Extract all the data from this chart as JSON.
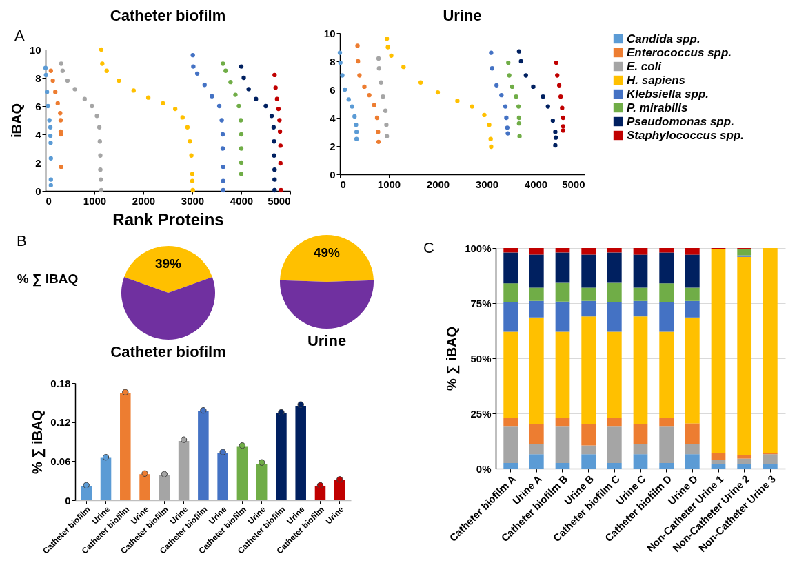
{
  "chart_data": [
    {
      "type": "scatter",
      "title": "Catheter biofilm",
      "xlabel": "Rank Proteins",
      "ylabel": "iBAQ",
      "annotations": [
        "A"
      ],
      "marker": "circle",
      "xlim": [
        0,
        5000
      ],
      "xticks": [
        0,
        1000,
        2000,
        3000,
        4000,
        5000
      ],
      "ylim": [
        0,
        10
      ],
      "yticks": [
        0,
        2,
        4,
        6,
        8,
        10
      ],
      "series": [
        {
          "color": "#5b9bd5",
          "x": [
            0,
            10,
            30,
            50,
            80,
            100,
            100,
            105,
            110,
            110,
            110
          ],
          "values": [
            8.7,
            8.2,
            7,
            6,
            5,
            4.5,
            3.9,
            3.4,
            2.3,
            0.8,
            0.4
          ]
        },
        {
          "color": "#ed7d31",
          "x": [
            110,
            150,
            200,
            250,
            300,
            310,
            310,
            315,
            320
          ],
          "values": [
            8.5,
            7.8,
            7,
            6.2,
            5.5,
            5,
            4.2,
            4,
            1.7
          ]
        },
        {
          "color": "#a5a5a5",
          "x": [
            320,
            350,
            450,
            600,
            800,
            950,
            1050,
            1100,
            1110,
            1120,
            1120,
            1130,
            1140
          ],
          "values": [
            9,
            8.5,
            7.8,
            7.2,
            6.5,
            6,
            5.3,
            4.5,
            3.5,
            2.5,
            1.5,
            0.8,
            0.05
          ]
        },
        {
          "color": "#ffc000",
          "x": [
            1140,
            1160,
            1250,
            1500,
            1800,
            2100,
            2400,
            2650,
            2800,
            2900,
            2950,
            2980,
            3000,
            3000,
            3010
          ],
          "values": [
            10,
            9,
            8.5,
            7.8,
            7.1,
            6.6,
            6.2,
            5.8,
            5.2,
            4.5,
            3.5,
            2.5,
            1.2,
            0.7,
            0.05
          ]
        },
        {
          "color": "#4472c4",
          "x": [
            3010,
            3020,
            3100,
            3250,
            3400,
            3550,
            3600,
            3620,
            3620,
            3630,
            3630,
            3630
          ],
          "values": [
            9.6,
            8.8,
            8.3,
            7.5,
            6.7,
            6,
            5,
            4,
            3,
            1.7,
            0.7,
            0.05
          ]
        },
        {
          "color": "#70ad47",
          "x": [
            3625,
            3680,
            3780,
            3880,
            3950,
            3990,
            4000,
            4000,
            4000,
            4000
          ],
          "values": [
            9,
            8.5,
            7.7,
            6.8,
            6,
            5,
            4,
            3,
            2,
            1.2
          ]
        },
        {
          "color": "#002060",
          "x": [
            4000,
            4050,
            4150,
            4300,
            4500,
            4620,
            4660,
            4670,
            4670,
            4680,
            4680,
            4680
          ],
          "values": [
            8.8,
            8,
            7.2,
            6.5,
            6,
            5.3,
            4.5,
            3.5,
            2.5,
            1.5,
            0.8,
            0.05
          ]
        },
        {
          "color": "#c00000",
          "x": [
            4680,
            4700,
            4730,
            4760,
            4780,
            4790,
            4800,
            4800,
            4810
          ],
          "values": [
            8.2,
            7.3,
            6.5,
            5.8,
            5,
            4.2,
            3.2,
            1.95,
            0.05
          ]
        }
      ]
    },
    {
      "type": "scatter",
      "title": "Urine",
      "marker": "circle",
      "legend": "right",
      "xlim": [
        0,
        5000
      ],
      "xticks": [
        0,
        1000,
        2000,
        3000,
        4000,
        5000
      ],
      "ylim": [
        0,
        10
      ],
      "yticks": [
        0,
        2,
        4,
        6,
        8,
        10
      ],
      "series": [
        {
          "name": "Candida spp.",
          "color": "#5b9bd5",
          "x": [
            0,
            10,
            50,
            100,
            180,
            250,
            300,
            330,
            340,
            340
          ],
          "values": [
            8.6,
            7.9,
            7,
            6,
            5.3,
            4.8,
            4.1,
            3.5,
            3,
            2.5
          ]
        },
        {
          "name": "Enterococcus spp.",
          "color": "#ed7d31",
          "x": [
            360,
            370,
            400,
            500,
            600,
            700,
            760,
            780,
            790
          ],
          "values": [
            9.1,
            8,
            7,
            6.2,
            5.6,
            4.9,
            4,
            3,
            2.3
          ]
        },
        {
          "name": "E. coli",
          "color": "#a5a5a5",
          "x": [
            790,
            800,
            840,
            880,
            930,
            950,
            960
          ],
          "values": [
            8.2,
            7.5,
            6.5,
            5.5,
            4.5,
            3.5,
            2.7
          ]
        },
        {
          "name": "H. sapiens",
          "color": "#ffc000",
          "x": [
            960,
            980,
            1050,
            1300,
            1650,
            2000,
            2400,
            2700,
            2950,
            3050,
            3080,
            3090
          ],
          "values": [
            9.6,
            9,
            8.4,
            7.6,
            6.5,
            5.8,
            5.2,
            4.8,
            4.2,
            3.5,
            2.5,
            1.95
          ]
        },
        {
          "name": "Klebsiella spp.",
          "color": "#4472c4",
          "x": [
            3090,
            3110,
            3200,
            3300,
            3380,
            3400,
            3420,
            3430
          ],
          "values": [
            8.6,
            7.5,
            6.3,
            5.6,
            4.8,
            4,
            3.3,
            2.9
          ]
        },
        {
          "name": "P. mirabilis",
          "color": "#70ad47",
          "x": [
            3440,
            3460,
            3520,
            3600,
            3650,
            3660,
            3660,
            3670
          ],
          "values": [
            7.9,
            7,
            6.2,
            5.5,
            4.8,
            4,
            3.6,
            2.7
          ]
        },
        {
          "name": "Pseudomonas spp.",
          "color": "#002060",
          "x": [
            3660,
            3700,
            3800,
            3950,
            4150,
            4250,
            4350,
            4400,
            4410,
            4400
          ],
          "values": [
            8.7,
            8,
            7,
            6.2,
            5.5,
            4.8,
            3.8,
            3,
            2.6,
            2.05
          ]
        },
        {
          "name": "Staphylococcus spp.",
          "color": "#c00000",
          "x": [
            4420,
            4440,
            4480,
            4510,
            4540,
            4560,
            4560,
            4560
          ],
          "values": [
            7.9,
            7,
            6.3,
            5.5,
            4.7,
            4,
            3.4,
            3.1
          ]
        }
      ]
    },
    {
      "type": "pie",
      "title": "Catheter biofilm",
      "annotations": [
        "B",
        "% ∑ iBAQ"
      ],
      "categories": [
        null,
        null
      ],
      "values": [
        39,
        61
      ],
      "colors": [
        "#ffc000",
        "#7030a0"
      ],
      "value_labels": [
        "39%",
        null
      ]
    },
    {
      "type": "pie",
      "title": "Urine",
      "categories": [
        null,
        null
      ],
      "values": [
        49,
        51
      ],
      "colors": [
        "#ffc000",
        "#7030a0"
      ],
      "value_labels": [
        "49%",
        null
      ]
    },
    {
      "type": "bar",
      "ylabel": "% ∑ iBAQ",
      "ylim": [
        0,
        0.18
      ],
      "yticks": [
        0,
        0.06,
        0.12,
        0.18
      ],
      "marker": "circle",
      "categories": [
        "Catheter biofilm",
        "Urine",
        "Catheter biofilm",
        "Urine",
        "Catheter biofilm",
        "Urine",
        "Catheter biofilm",
        "Urine",
        "Catheter biofilm",
        "Urine",
        "Catheter biofilm",
        "Urine",
        "Catheter biofilm",
        "Urine"
      ],
      "series": [
        {
          "type": "bar",
          "colors": [
            "#5b9bd5",
            "#5b9bd5",
            "#ed7d31",
            "#ed7d31",
            "#a5a5a5",
            "#a5a5a5",
            "#4472c4",
            "#4472c4",
            "#70ad47",
            "#70ad47",
            "#002060",
            "#002060",
            "#c00000",
            "#c00000"
          ],
          "values": [
            0.022,
            0.065,
            0.165,
            0.04,
            0.039,
            0.091,
            0.137,
            0.072,
            0.082,
            0.056,
            0.134,
            0.145,
            0.022,
            0.031
          ]
        },
        {
          "type": "scatter",
          "colors": [
            "#5b9bd5",
            "#5b9bd5",
            "#ed7d31",
            "#ed7d31",
            "#a5a5a5",
            "#a5a5a5",
            "#4472c4",
            "#4472c4",
            "#70ad47",
            "#70ad47",
            "#002060",
            "#002060",
            "#c00000",
            "#c00000"
          ],
          "values": [
            0.023,
            0.066,
            0.166,
            0.041,
            0.04,
            0.093,
            0.138,
            0.074,
            0.084,
            0.058,
            0.135,
            0.147,
            0.023,
            0.032
          ]
        }
      ]
    },
    {
      "type": "bar",
      "stacked": true,
      "ylabel": "% ∑ iBAQ",
      "annotations": [
        "C"
      ],
      "grid": "y",
      "ylim": [
        0,
        100
      ],
      "yticks": [
        {
          "value": 0,
          "label": "0%"
        },
        {
          "value": 25,
          "label": "25%"
        },
        {
          "value": 50,
          "label": "50%"
        },
        {
          "value": 75,
          "label": "75%"
        },
        {
          "value": 100,
          "label": "100%"
        }
      ],
      "categories": [
        "Catheter biofilm A",
        "Urine A",
        "Catheter biofilm B",
        "Urine B",
        "Catheter biofilm C",
        "Urine C",
        "Catheter biofilm D",
        "Urine D",
        "Non-Catheter Urine 1",
        "Non-Catheter Urine 2",
        "Non-Catheter Urine 3"
      ],
      "series": [
        {
          "color": "#5b9bd5",
          "values": [
            2.5,
            6.5,
            2.5,
            6.5,
            2.5,
            6.5,
            2.5,
            6.5,
            2,
            2,
            2
          ]
        },
        {
          "color": "#a5a5a5",
          "values": [
            16.5,
            4.5,
            16.5,
            4,
            16.5,
            4.5,
            16.5,
            4.5,
            2,
            2.5,
            4.5
          ]
        },
        {
          "color": "#ed7d31",
          "values": [
            4,
            9,
            4,
            9.5,
            4,
            9,
            4,
            9.5,
            3,
            1.5,
            0.5
          ]
        },
        {
          "color": "#ffc000",
          "values": [
            39,
            48.5,
            39,
            49,
            39,
            49,
            39,
            48,
            92.5,
            90,
            93
          ]
        },
        {
          "color": "#4472c4",
          "values": [
            13.5,
            7.5,
            13.7,
            7,
            13.5,
            7,
            13.5,
            7.5,
            0,
            0.7,
            0
          ]
        },
        {
          "color": "#70ad47",
          "values": [
            8.5,
            6,
            8.5,
            6,
            8.7,
            6,
            8.5,
            6,
            0,
            2.7,
            0
          ]
        },
        {
          "color": "#002060",
          "values": [
            14,
            15,
            13.8,
            15,
            13.8,
            15,
            14,
            15,
            0,
            0.3,
            0
          ]
        },
        {
          "color": "#c00000",
          "values": [
            2,
            3,
            2,
            3,
            2,
            3,
            2,
            3,
            0.5,
            0.3,
            0
          ]
        }
      ]
    }
  ]
}
